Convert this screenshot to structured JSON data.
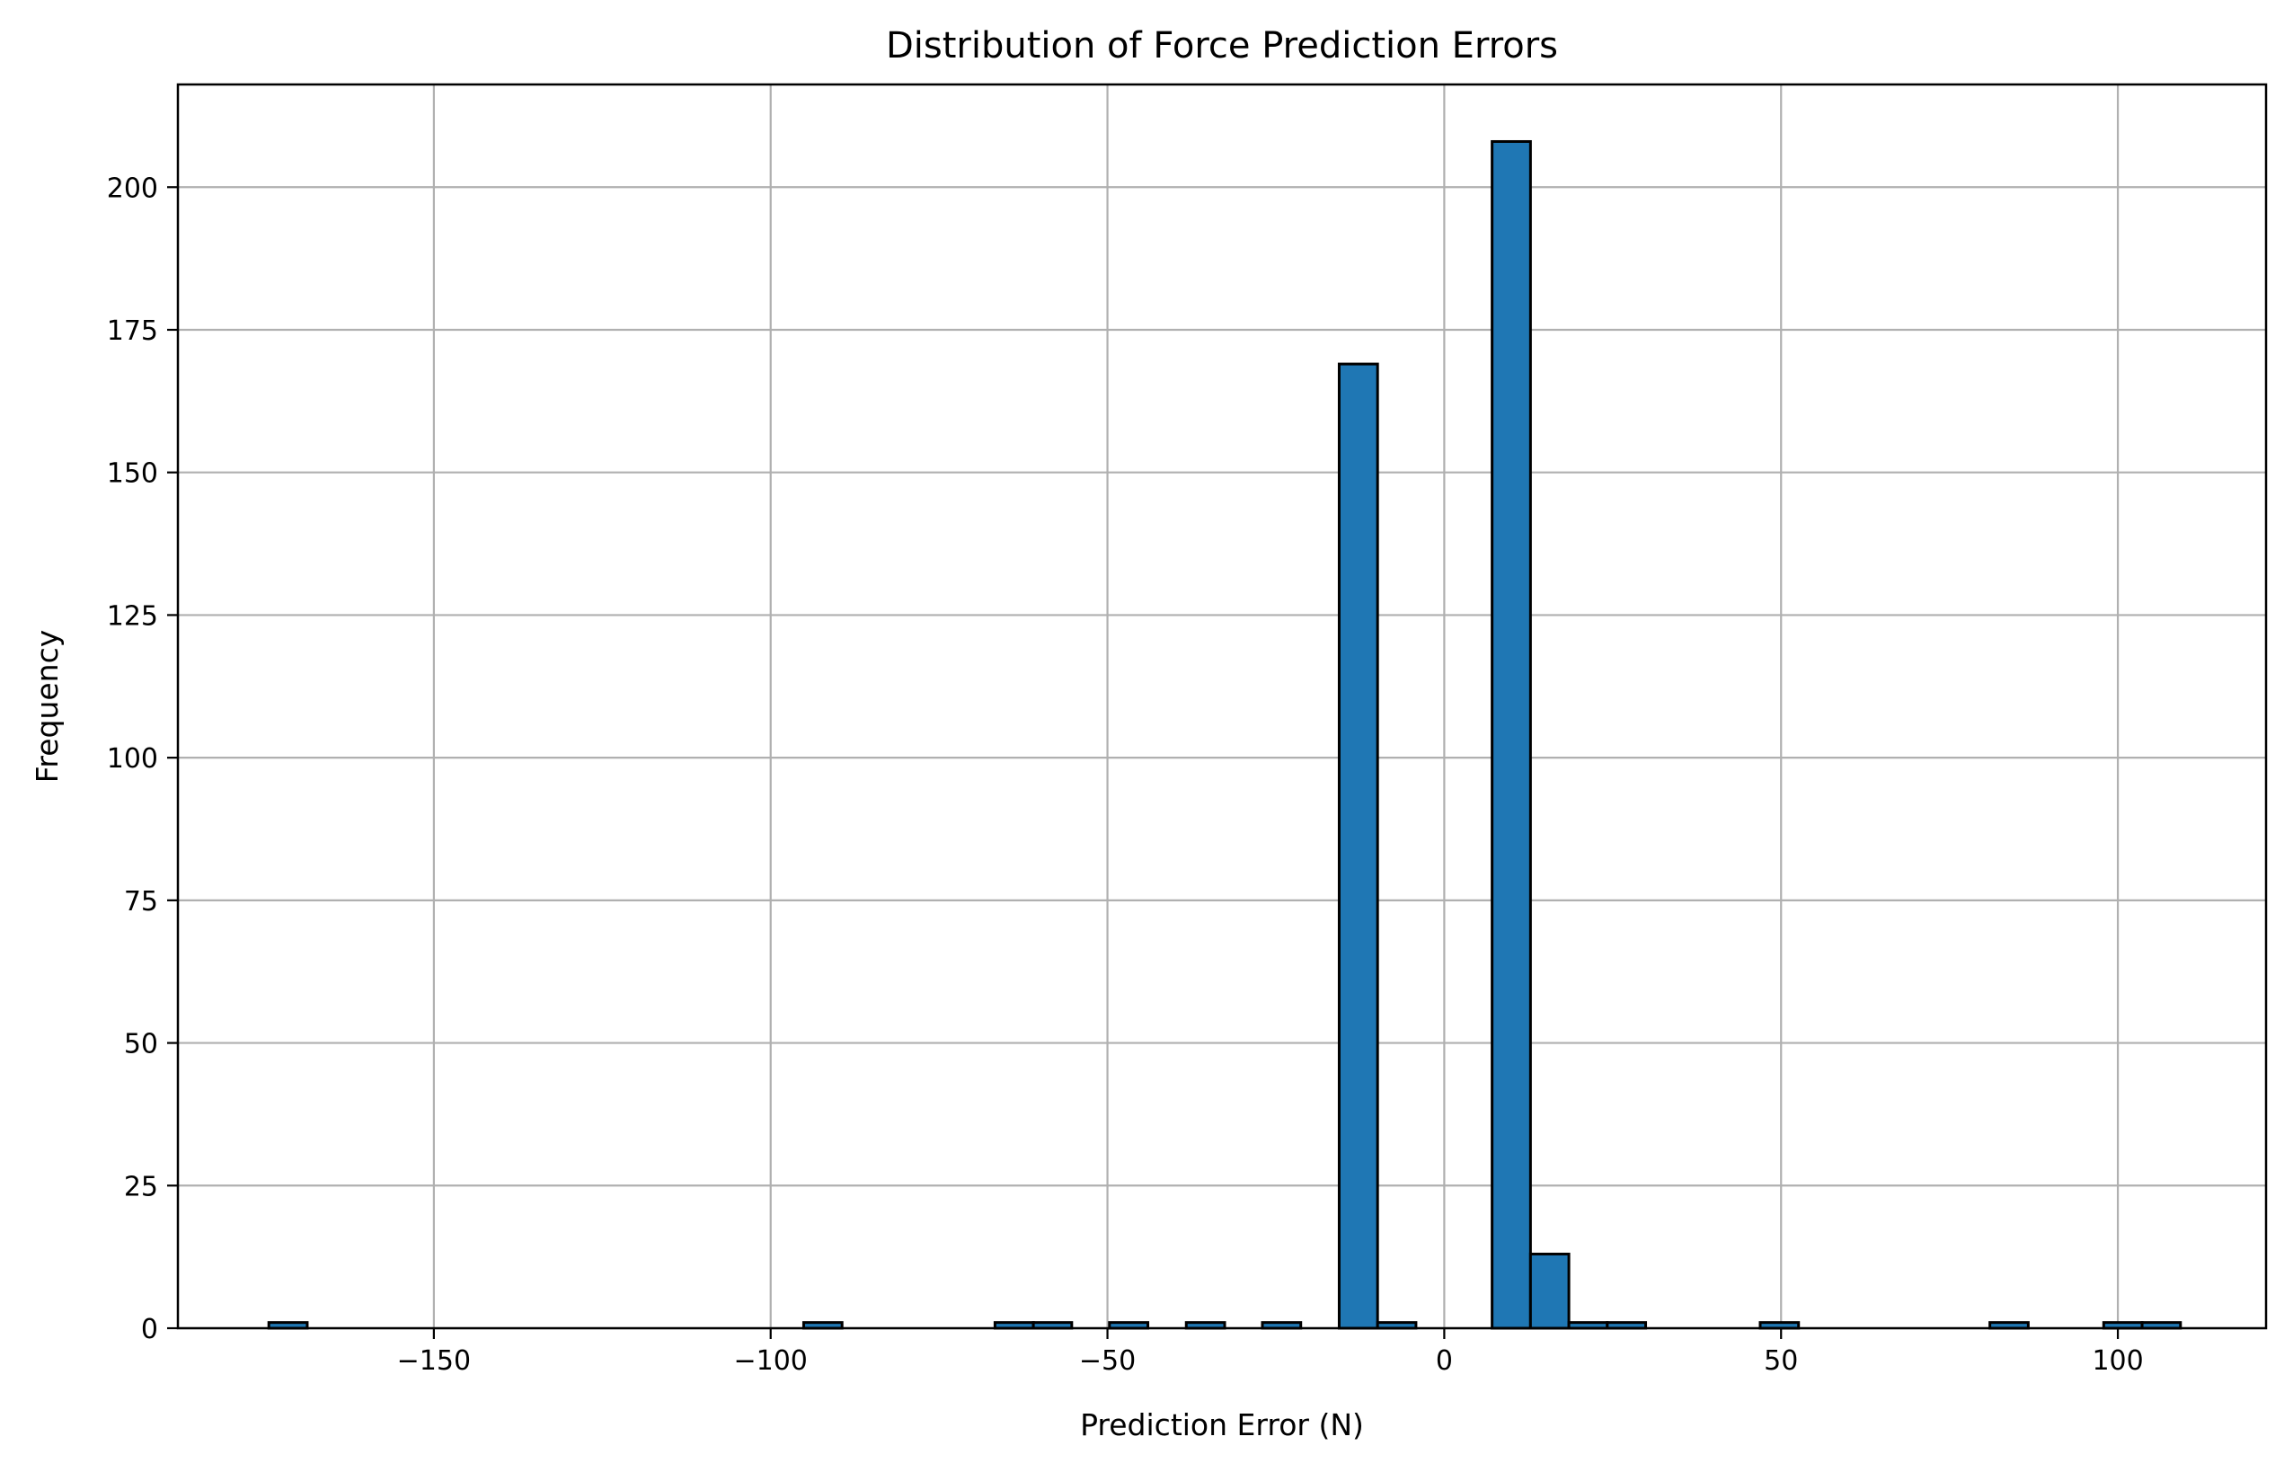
{
  "chart_data": {
    "type": "bar",
    "subtype": "histogram",
    "title": "Distribution of Force Prediction Errors",
    "xlabel": "Prediction Error (N)",
    "ylabel": "Frequency",
    "xlim": [
      -188,
      122
    ],
    "ylim": [
      0,
      218
    ],
    "xticks": [
      -150,
      -100,
      -50,
      0,
      50,
      100
    ],
    "xtick_labels": [
      "−150",
      "−100",
      "−50",
      "0",
      "50",
      "100"
    ],
    "yticks": [
      0,
      25,
      50,
      75,
      100,
      125,
      150,
      175,
      200
    ],
    "ytick_labels": [
      "0",
      "25",
      "50",
      "75",
      "100",
      "125",
      "150",
      "175",
      "200"
    ],
    "grid": true,
    "bin_width": 5.7,
    "bins": [
      {
        "x0": -174.5,
        "x1": -168.8,
        "count": 1
      },
      {
        "x0": -95.1,
        "x1": -89.4,
        "count": 1
      },
      {
        "x0": -66.7,
        "x1": -61.0,
        "count": 1
      },
      {
        "x0": -61.0,
        "x1": -55.3,
        "count": 1
      },
      {
        "x0": -49.7,
        "x1": -44.0,
        "count": 1
      },
      {
        "x0": -38.3,
        "x1": -32.6,
        "count": 1
      },
      {
        "x0": -27.0,
        "x1": -21.3,
        "count": 1
      },
      {
        "x0": -15.6,
        "x1": -9.9,
        "count": 169
      },
      {
        "x0": -9.9,
        "x1": -4.2,
        "count": 1
      },
      {
        "x0": 7.1,
        "x1": 12.8,
        "count": 208
      },
      {
        "x0": 12.8,
        "x1": 18.5,
        "count": 13
      },
      {
        "x0": 18.5,
        "x1": 24.2,
        "count": 1
      },
      {
        "x0": 24.2,
        "x1": 29.9,
        "count": 1
      },
      {
        "x0": 46.9,
        "x1": 52.6,
        "count": 1
      },
      {
        "x0": 81.0,
        "x1": 86.7,
        "count": 1
      },
      {
        "x0": 97.9,
        "x1": 103.6,
        "count": 1
      },
      {
        "x0": 103.6,
        "x1": 109.3,
        "count": 1
      }
    ],
    "colors": {
      "bar_fill": "#1f77b4",
      "bar_edge": "#000000",
      "grid": "#b0b0b0",
      "axes": "#000000",
      "background": "#ffffff"
    }
  }
}
